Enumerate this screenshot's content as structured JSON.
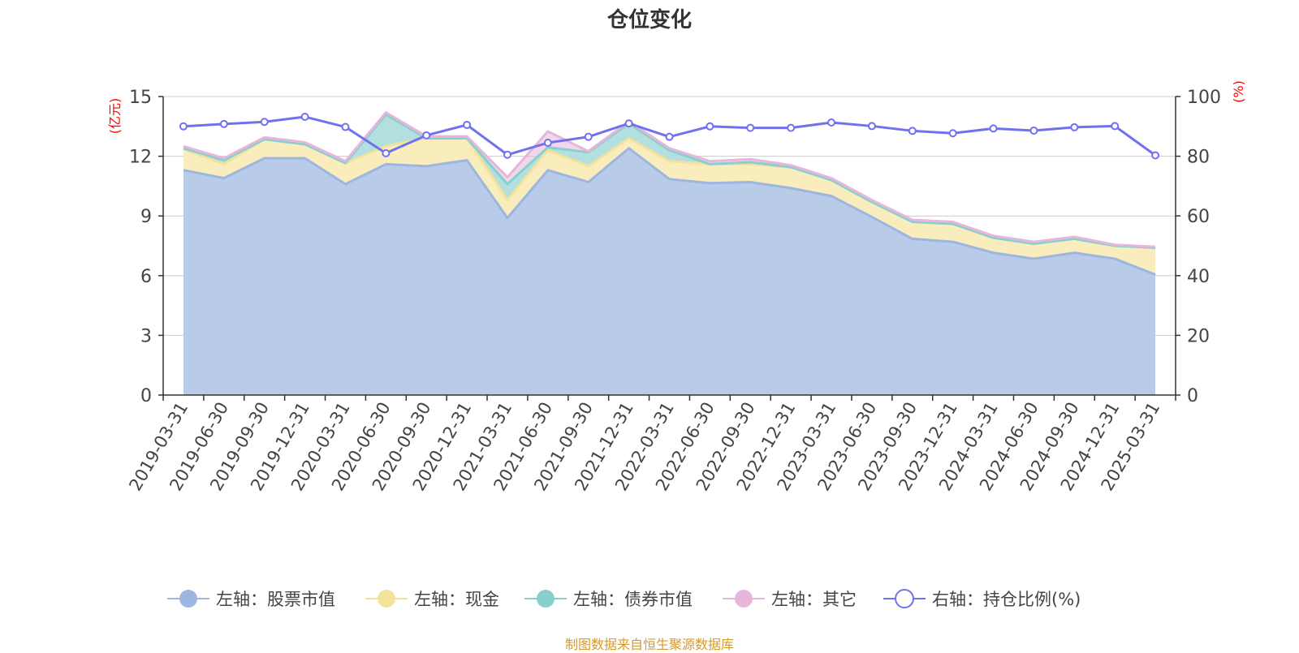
{
  "title": "仓位变化",
  "footer": "制图数据来自恒生聚源数据库",
  "colors": {
    "stock": "#9db6e0",
    "stock_fill": "#b8cce9",
    "cash": "#f5e29a",
    "cash_fill": "#faedbd",
    "bond": "#88cfcf",
    "bond_fill": "#b3e0df",
    "other": "#e6b6db",
    "ratio": "#7171f0",
    "axis_name": "#ff0000",
    "footer": "#d49a2a",
    "grid": "#cccccc"
  },
  "chart_data": {
    "type": "area",
    "title": "仓位变化",
    "left_axis": {
      "name": "(亿元)",
      "ylim": [
        0,
        15
      ],
      "ticks": [
        "0",
        "3",
        "6",
        "9",
        "12",
        "15"
      ]
    },
    "right_axis": {
      "name": "(%)",
      "ylim": [
        0,
        100
      ],
      "ticks": [
        "0",
        "20",
        "40",
        "60",
        "80",
        "100"
      ]
    },
    "x": [
      "2019-03-31",
      "2019-06-30",
      "2019-09-30",
      "2019-12-31",
      "2020-03-31",
      "2020-06-30",
      "2020-09-30",
      "2020-12-31",
      "2021-03-31",
      "2021-06-30",
      "2021-09-30",
      "2021-12-31",
      "2022-03-31",
      "2022-06-30",
      "2022-09-30",
      "2022-12-31",
      "2023-03-31",
      "2023-06-30",
      "2023-09-30",
      "2023-12-31",
      "2024-03-31",
      "2024-06-30",
      "2024-09-30",
      "2024-12-31",
      "2025-03-31"
    ],
    "grid": true,
    "legend_position": "bottom",
    "series": [
      {
        "key": "stock",
        "name": "左轴：股票市值",
        "axis": "left",
        "stacked": true,
        "values": [
          11.3,
          10.9,
          11.9,
          11.9,
          10.6,
          11.6,
          11.5,
          11.8,
          8.9,
          11.3,
          10.7,
          12.4,
          10.85,
          10.65,
          10.7,
          10.4,
          10.0,
          8.95,
          7.85,
          7.7,
          7.15,
          6.85,
          7.15,
          6.85,
          6.05
        ]
      },
      {
        "key": "cash",
        "name": "左轴：现金",
        "axis": "left",
        "stacked": true,
        "values": [
          1.05,
          0.7,
          0.95,
          0.7,
          1.05,
          0.9,
          1.4,
          1.1,
          0.9,
          1.0,
          0.8,
          0.5,
          0.9,
          0.95,
          0.9,
          1.05,
          0.8,
          0.75,
          0.85,
          0.9,
          0.75,
          0.75,
          0.7,
          0.65,
          1.35
        ]
      },
      {
        "key": "bond",
        "name": "左轴：债券市值",
        "axis": "left",
        "stacked": true,
        "values": [
          0.05,
          0.2,
          0.0,
          0.0,
          0.0,
          1.6,
          0.0,
          0.0,
          0.8,
          0.15,
          0.7,
          0.75,
          0.55,
          0.0,
          0.1,
          0.0,
          0.0,
          0.0,
          0.0,
          0.0,
          0.0,
          0.0,
          0.0,
          0.0,
          0.0
        ]
      },
      {
        "key": "other",
        "name": "左轴：其它",
        "axis": "left",
        "stacked": true,
        "values": [
          0.1,
          0.1,
          0.1,
          0.1,
          0.1,
          0.1,
          0.1,
          0.1,
          0.35,
          0.8,
          0.05,
          0.1,
          0.1,
          0.15,
          0.15,
          0.1,
          0.1,
          0.1,
          0.1,
          0.1,
          0.1,
          0.1,
          0.1,
          0.05,
          0.05
        ]
      },
      {
        "key": "ratio",
        "name": "右轴：持仓比例(%)",
        "axis": "right",
        "stacked": false,
        "values": [
          90.0,
          90.8,
          91.5,
          93.2,
          89.8,
          81.0,
          87.0,
          90.5,
          80.5,
          84.5,
          86.5,
          91.0,
          86.5,
          90.0,
          89.5,
          89.5,
          91.3,
          90.1,
          88.5,
          87.7,
          89.3,
          88.6,
          89.7,
          90.1,
          80.3
        ]
      }
    ]
  }
}
